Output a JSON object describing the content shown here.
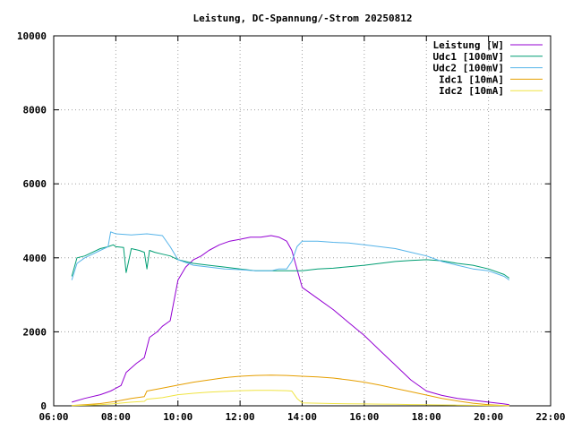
{
  "chart_data": {
    "type": "line",
    "title": "Leistung, DC-Spannung/-Strom 20250812",
    "xlabel": "",
    "ylabel": "",
    "xlim": [
      "06:00",
      "22:00"
    ],
    "ylim": [
      0,
      10000
    ],
    "x_ticks": [
      "06:00",
      "08:00",
      "10:00",
      "12:00",
      "14:00",
      "16:00",
      "18:00",
      "20:00",
      "22:00"
    ],
    "y_ticks": [
      "0",
      "2000",
      "4000",
      "6000",
      "8000",
      "10000"
    ],
    "grid": true,
    "legend_position": "top-right",
    "series": [
      {
        "name": "Leistung [W]",
        "color": "#9400d3",
        "x": [
          "06:35",
          "07:00",
          "07:30",
          "07:50",
          "08:10",
          "08:20",
          "08:40",
          "08:55",
          "09:05",
          "09:20",
          "09:30",
          "09:45",
          "10:00",
          "10:15",
          "10:30",
          "10:45",
          "11:00",
          "11:20",
          "11:40",
          "12:00",
          "12:20",
          "12:40",
          "13:00",
          "13:15",
          "13:30",
          "13:40",
          "13:50",
          "14:00",
          "14:30",
          "15:00",
          "15:30",
          "16:00",
          "16:30",
          "17:00",
          "17:30",
          "18:00",
          "18:30",
          "19:00",
          "19:30",
          "20:00",
          "20:30",
          "20:40"
        ],
        "values": [
          100,
          200,
          300,
          400,
          550,
          900,
          1150,
          1300,
          1850,
          2000,
          2150,
          2300,
          3400,
          3750,
          3950,
          4050,
          4200,
          4350,
          4450,
          4500,
          4560,
          4560,
          4600,
          4560,
          4450,
          4200,
          3700,
          3200,
          2900,
          2600,
          2250,
          1900,
          1500,
          1100,
          700,
          400,
          280,
          200,
          150,
          100,
          50,
          30
        ]
      },
      {
        "name": "Udc1 [100mV]",
        "color": "#009e73",
        "x": [
          "06:35",
          "06:45",
          "07:00",
          "07:15",
          "07:30",
          "07:45",
          "07:55",
          "08:00",
          "08:15",
          "08:20",
          "08:30",
          "08:45",
          "08:55",
          "09:00",
          "09:05",
          "09:15",
          "09:30",
          "09:45",
          "10:00",
          "10:30",
          "11:00",
          "11:30",
          "12:00",
          "12:30",
          "13:00",
          "13:30",
          "14:00",
          "14:30",
          "15:00",
          "15:30",
          "16:00",
          "16:30",
          "17:00",
          "17:30",
          "18:00",
          "18:30",
          "19:00",
          "19:30",
          "20:00",
          "20:30",
          "20:40"
        ],
        "values": [
          3500,
          4000,
          4050,
          4150,
          4250,
          4300,
          4350,
          4300,
          4280,
          3600,
          4250,
          4200,
          4150,
          3700,
          4200,
          4150,
          4100,
          4050,
          3950,
          3850,
          3800,
          3750,
          3700,
          3650,
          3650,
          3650,
          3650,
          3700,
          3720,
          3760,
          3800,
          3850,
          3900,
          3930,
          3950,
          3920,
          3850,
          3800,
          3700,
          3550,
          3450
        ]
      },
      {
        "name": "Udc2 [100mV]",
        "color": "#56b4e9",
        "x": [
          "06:35",
          "06:45",
          "07:00",
          "07:15",
          "07:30",
          "07:45",
          "07:50",
          "08:00",
          "08:30",
          "09:00",
          "09:30",
          "09:45",
          "10:00",
          "10:30",
          "11:00",
          "11:30",
          "12:00",
          "12:30",
          "13:00",
          "13:15",
          "13:30",
          "13:40",
          "13:50",
          "14:00",
          "14:30",
          "15:00",
          "15:30",
          "16:00",
          "16:30",
          "17:00",
          "17:30",
          "18:00",
          "18:30",
          "19:00",
          "19:30",
          "20:00",
          "20:30",
          "20:40"
        ],
        "values": [
          3400,
          3850,
          4000,
          4100,
          4200,
          4300,
          4700,
          4650,
          4620,
          4650,
          4600,
          4300,
          3950,
          3800,
          3750,
          3700,
          3680,
          3650,
          3650,
          3700,
          3700,
          3900,
          4300,
          4450,
          4450,
          4420,
          4400,
          4350,
          4300,
          4250,
          4150,
          4050,
          3900,
          3800,
          3700,
          3650,
          3500,
          3400
        ]
      },
      {
        "name": "Idc1 [10mA]",
        "color": "#e69f00",
        "x": [
          "06:35",
          "07:00",
          "07:30",
          "08:00",
          "08:30",
          "08:55",
          "09:00",
          "09:30",
          "10:00",
          "10:30",
          "11:00",
          "11:30",
          "12:00",
          "12:30",
          "13:00",
          "13:30",
          "14:00",
          "14:30",
          "15:00",
          "15:30",
          "16:00",
          "16:30",
          "17:00",
          "17:30",
          "18:00",
          "18:30",
          "19:00",
          "19:30",
          "20:00",
          "20:30",
          "20:40"
        ],
        "values": [
          10,
          30,
          60,
          120,
          200,
          250,
          400,
          480,
          560,
          640,
          700,
          760,
          800,
          820,
          830,
          820,
          800,
          780,
          750,
          700,
          640,
          560,
          470,
          380,
          290,
          200,
          130,
          70,
          30,
          10,
          5
        ]
      },
      {
        "name": "Idc2 [10mA]",
        "color": "#f0e442",
        "x": [
          "06:35",
          "07:00",
          "07:30",
          "08:00",
          "08:30",
          "08:55",
          "09:00",
          "09:30",
          "10:00",
          "10:30",
          "11:00",
          "11:30",
          "12:00",
          "12:30",
          "13:00",
          "13:30",
          "13:40",
          "13:50",
          "14:00",
          "14:30",
          "15:00",
          "15:30",
          "16:00",
          "16:30",
          "17:00",
          "17:30",
          "18:00",
          "18:30",
          "19:00",
          "19:30",
          "20:00",
          "20:30",
          "20:40"
        ],
        "values": [
          5,
          15,
          30,
          60,
          100,
          120,
          180,
          220,
          300,
          340,
          370,
          390,
          410,
          420,
          420,
          410,
          400,
          200,
          80,
          70,
          60,
          55,
          50,
          45,
          40,
          35,
          30,
          25,
          20,
          15,
          10,
          5,
          3
        ]
      }
    ]
  }
}
